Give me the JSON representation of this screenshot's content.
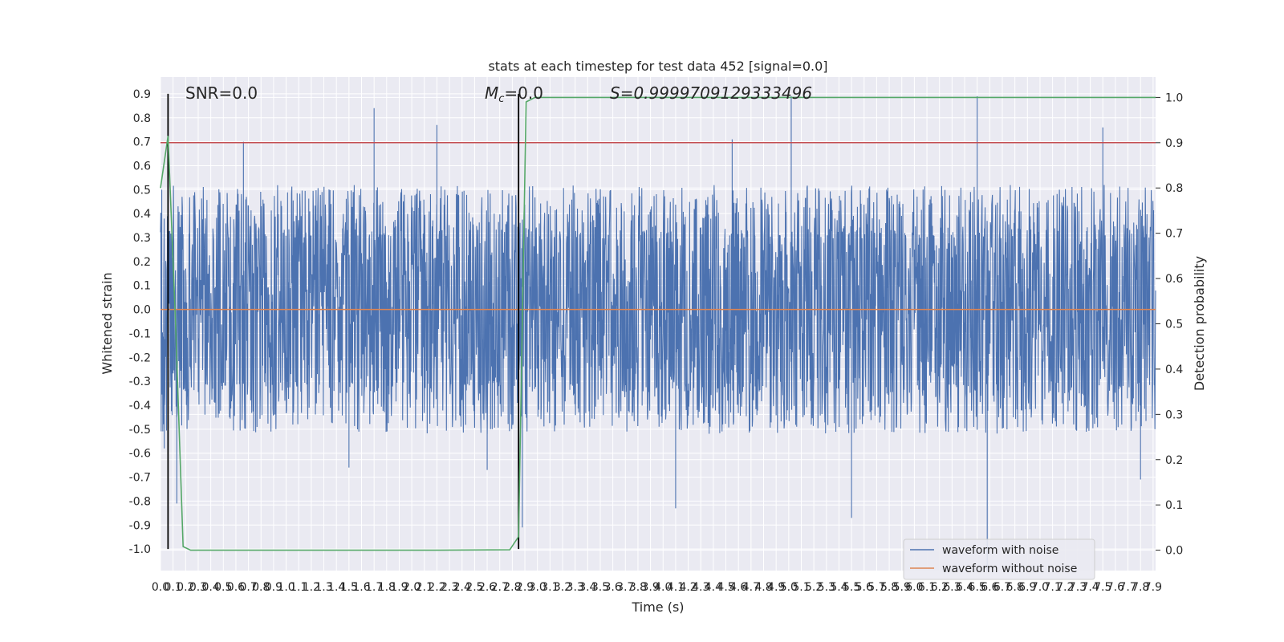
{
  "chart_data": {
    "type": "line",
    "title": "stats at each timestep for test data 452 [signal=0.0]",
    "xlabel": "Time (s)",
    "ylabel": "Whitened strain",
    "y2label": "Detection probability",
    "xlim": [
      0.0,
      7.92
    ],
    "ylim": [
      -1.09,
      0.97
    ],
    "y2lim": [
      -0.045,
      1.045
    ],
    "x_ticks": [
      "0.0",
      "0.1",
      "0.2",
      "0.3",
      "0.4",
      "0.5",
      "0.6",
      "0.7",
      "0.8",
      "0.9",
      "1.0",
      "1.1",
      "1.2",
      "1.3",
      "1.4",
      "1.5",
      "1.6",
      "1.7",
      "1.8",
      "1.9",
      "2.0",
      "2.1",
      "2.2",
      "2.3",
      "2.4",
      "2.5",
      "2.6",
      "2.7",
      "2.8",
      "2.9",
      "3.0",
      "3.1",
      "3.2",
      "3.3",
      "3.4",
      "3.5",
      "3.6",
      "3.7",
      "3.8",
      "3.9",
      "4.0",
      "4.1",
      "4.2",
      "4.3",
      "4.4",
      "4.5",
      "4.6",
      "4.7",
      "4.8",
      "4.9",
      "5.0",
      "5.1",
      "5.2",
      "5.3",
      "5.4",
      "5.5",
      "5.6",
      "5.7",
      "5.8",
      "5.9",
      "6.0",
      "6.1",
      "6.2",
      "6.3",
      "6.4",
      "6.5",
      "6.6",
      "6.7",
      "6.8",
      "6.9",
      "7.0",
      "7.1",
      "7.2",
      "7.3",
      "7.4",
      "7.5",
      "7.6",
      "7.7",
      "7.8",
      "7.9"
    ],
    "y_ticks": [
      "-1.0",
      "-0.9",
      "-0.8",
      "-0.7",
      "-0.6",
      "-0.5",
      "-0.4",
      "-0.3",
      "-0.2",
      "-0.1",
      "0.0",
      "0.1",
      "0.2",
      "0.3",
      "0.4",
      "0.5",
      "0.6",
      "0.7",
      "0.8",
      "0.9"
    ],
    "y2_ticks": [
      "0.0",
      "0.1",
      "0.2",
      "0.3",
      "0.4",
      "0.5",
      "0.6",
      "0.7",
      "0.8",
      "0.9",
      "1.0"
    ],
    "grid": true,
    "legend_position": "lower-right",
    "annotations": {
      "snr": "SNR=0.0",
      "mc_symbol": "M",
      "mc_sub": "c",
      "mc_value": "=0.0",
      "s": "S=0.9999709129333496"
    },
    "threshold_line": {
      "axis": "right",
      "y": 0.9,
      "color": "#c44e52"
    },
    "vertical_lines": [
      {
        "x": 0.06,
        "color": "#000000"
      },
      {
        "x": 2.85,
        "color": "#000000"
      }
    ],
    "series": [
      {
        "name": "waveform with noise",
        "axis": "left",
        "color": "#4c72b0",
        "description": "dense noise, mostly within -0.45..0.45, sparse spikes",
        "spikes": [
          [
            0.01,
            0.5
          ],
          [
            0.03,
            -0.58
          ],
          [
            0.06,
            0.73
          ],
          [
            0.13,
            -0.81
          ],
          [
            0.66,
            0.7
          ],
          [
            1.5,
            -0.66
          ],
          [
            1.7,
            0.84
          ],
          [
            2.2,
            0.77
          ],
          [
            2.6,
            -0.67
          ],
          [
            2.88,
            -0.91
          ],
          [
            4.1,
            -0.83
          ],
          [
            4.55,
            0.71
          ],
          [
            5.02,
            0.89
          ],
          [
            5.5,
            -0.87
          ],
          [
            6.5,
            0.89
          ],
          [
            6.58,
            -1.09
          ],
          [
            7.5,
            0.76
          ],
          [
            7.8,
            -0.71
          ]
        ]
      },
      {
        "name": "waveform without noise",
        "axis": "left",
        "color": "#dd8452",
        "x": [
          0.0,
          7.92
        ],
        "y": [
          0.0,
          0.0
        ]
      },
      {
        "name": "",
        "axis": "right",
        "color": "#55a868",
        "x": [
          0.0,
          0.06,
          0.12,
          0.18,
          0.24,
          0.8,
          1.5,
          2.2,
          2.78,
          2.85,
          2.91,
          2.98,
          3.5,
          5.0,
          7.92
        ],
        "y": [
          0.8,
          0.915,
          0.5,
          0.008,
          0.0,
          0.0,
          0.0,
          0.0,
          0.001,
          0.03,
          0.99,
          1.0,
          1.0,
          1.0,
          1.0
        ]
      }
    ]
  }
}
